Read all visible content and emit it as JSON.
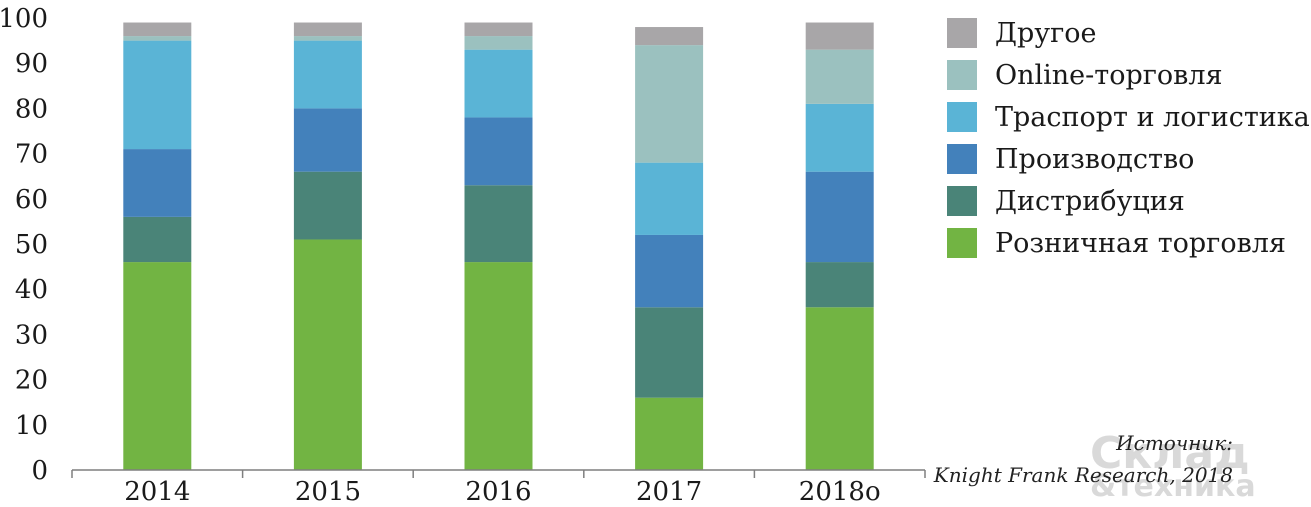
{
  "chart_data": {
    "type": "bar",
    "stacked": true,
    "categories": [
      "2014",
      "2015",
      "2016",
      "2017",
      "2018о"
    ],
    "ylim": [
      0,
      100
    ],
    "yticks": [
      0,
      10,
      20,
      30,
      40,
      50,
      60,
      70,
      80,
      90,
      100
    ],
    "grid": false,
    "legend_position": "right",
    "series": [
      {
        "name": "Розничная торговля",
        "color": "#72b443",
        "values": [
          46,
          51,
          46,
          16,
          36
        ]
      },
      {
        "name": "Дистрибуция",
        "color": "#4a8478",
        "values": [
          10,
          15,
          17,
          20,
          10
        ]
      },
      {
        "name": "Производство",
        "color": "#4381bb",
        "values": [
          15,
          14,
          15,
          16,
          20
        ]
      },
      {
        "name": "Траспорт и логистика",
        "color": "#5ab4d6",
        "values": [
          24,
          15,
          15,
          16,
          15
        ]
      },
      {
        "name": "Online-торговля",
        "color": "#9bc1bf",
        "values": [
          1,
          1,
          3,
          26,
          12
        ]
      },
      {
        "name": "Другое",
        "color": "#a8a6a8",
        "values": [
          3,
          3,
          3,
          4,
          6
        ]
      }
    ],
    "source": {
      "line1": "Источник:",
      "line2": "Knight Frank Research, 2018"
    }
  },
  "watermark": {
    "line1": "Склад",
    "line2": "&техника"
  },
  "colors": {
    "axis": "#7f7f7f",
    "text": "#1a1a1a"
  }
}
